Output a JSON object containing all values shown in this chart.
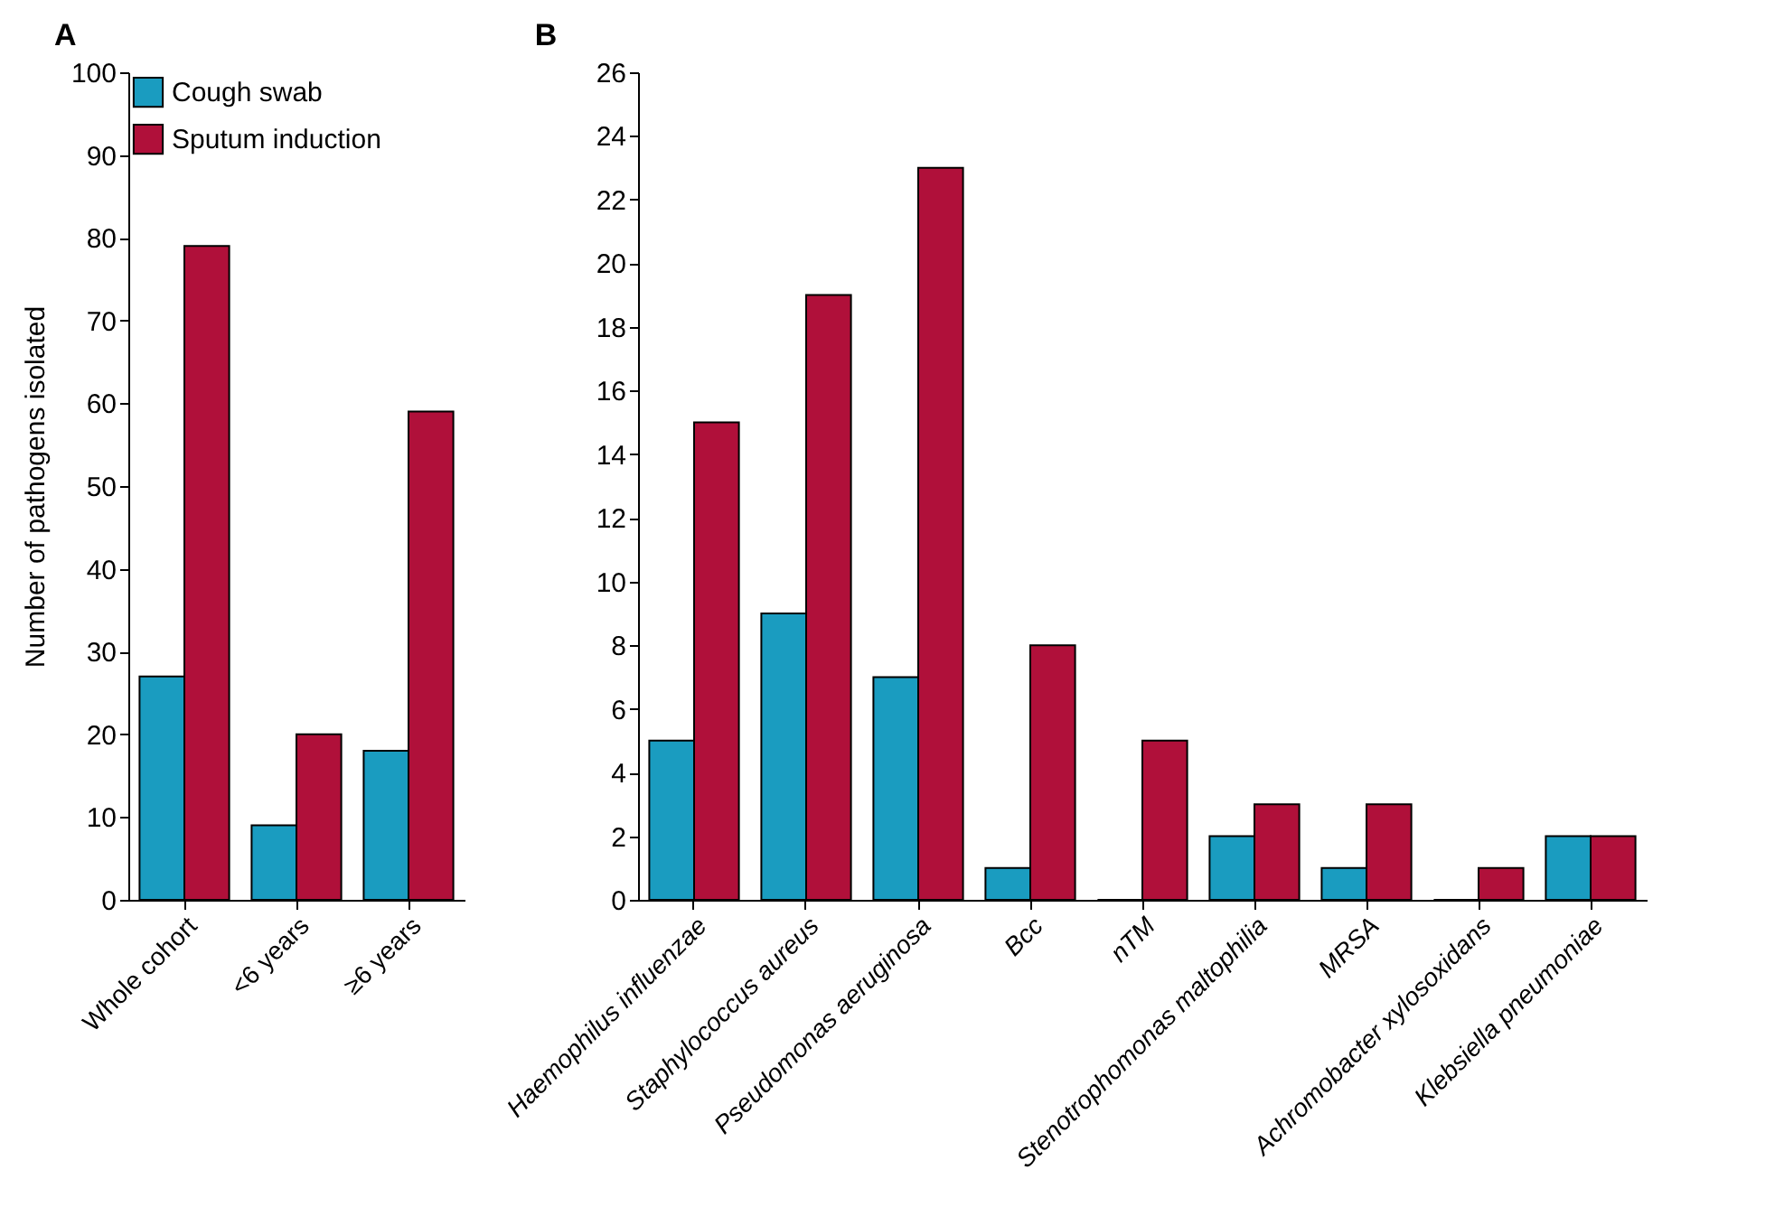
{
  "chart_data": [
    {
      "type": "bar",
      "title": "A",
      "ylabel": "Number of pathogens isolated",
      "categories": [
        "Whole cohort",
        "<6 years",
        "≥6 years"
      ],
      "series": [
        {
          "name": "Cough swab",
          "color": "#1a9cc0",
          "values": [
            27,
            9,
            18
          ]
        },
        {
          "name": "Sputum induction",
          "color": "#b0103a",
          "values": [
            79,
            20,
            59
          ]
        }
      ],
      "ylim": [
        0,
        100
      ],
      "yticks": [
        0,
        10,
        20,
        30,
        40,
        50,
        60,
        70,
        80,
        90,
        100
      ],
      "grid": false,
      "legend": "top left"
    },
    {
      "type": "bar",
      "title": "B",
      "categories": [
        "Haemophilus influenzae",
        "Staphylococcus aureus",
        "Pseudomonas aeruginosa",
        "Bcc",
        "nTM",
        "Stenotrophomonas maltophilia",
        "MRSA",
        "Achromobacter xylosoxidans",
        "Klebsiella pneumoniae"
      ],
      "series": [
        {
          "color": "#1a9cc0",
          "values": [
            5,
            9,
            7,
            1,
            0,
            2,
            1,
            0,
            2
          ]
        },
        {
          "color": "#b0103a",
          "values": [
            15,
            19,
            23,
            8,
            5,
            3,
            3,
            1,
            2
          ]
        }
      ],
      "ylim": [
        0,
        26
      ],
      "yticks": [
        0,
        2,
        4,
        6,
        8,
        10,
        12,
        14,
        16,
        18,
        20,
        22,
        24,
        26
      ],
      "grid": false
    }
  ]
}
